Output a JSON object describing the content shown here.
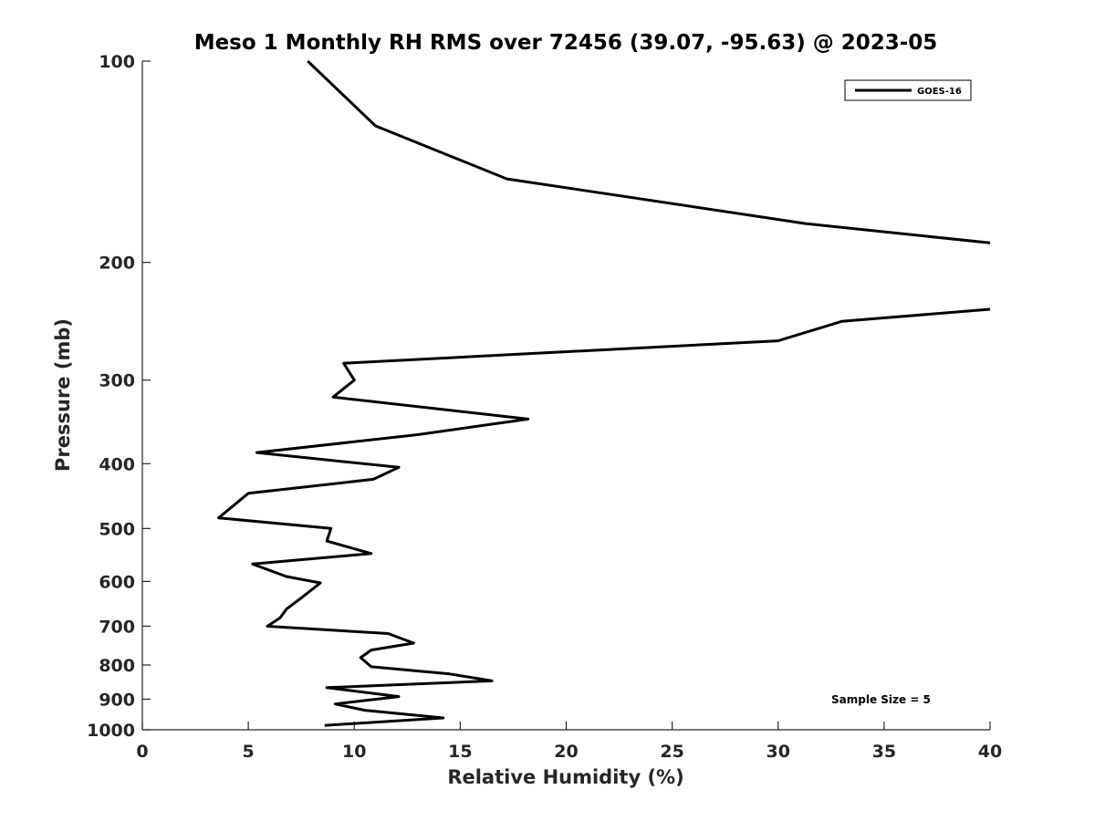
{
  "chart_data": {
    "type": "line",
    "title": "Meso 1 Monthly RH RMS over 72456 (39.07, -95.63) @ 2023-05",
    "xlabel": "Relative Humidity (%)",
    "ylabel": "Pressure (mb)",
    "xlim": [
      0,
      40
    ],
    "ylim": [
      100,
      1000
    ],
    "y_scale": "log",
    "y_reversed": true,
    "x_ticks": [
      0,
      5,
      10,
      15,
      20,
      25,
      30,
      35,
      40
    ],
    "x_tick_labels": [
      "0",
      "5",
      "10",
      "15",
      "20",
      "25",
      "30",
      "35",
      "40"
    ],
    "y_ticks": [
      100,
      200,
      300,
      400,
      500,
      600,
      700,
      800,
      900,
      1000
    ],
    "y_tick_labels": [
      "100",
      "200",
      "300",
      "400",
      "500",
      "600",
      "700",
      "800",
      "900",
      "1000"
    ],
    "grid": false,
    "legend_position": "top-right",
    "series": [
      {
        "name": "GOES-16",
        "color": "#000000",
        "segments": [
          [
            {
              "x": 7.8,
              "p": 100
            },
            {
              "x": 11.0,
              "p": 125
            },
            {
              "x": 17.2,
              "p": 150
            },
            {
              "x": 31.3,
              "p": 175
            },
            {
              "x": 40.0,
              "p": 187
            }
          ],
          [
            {
              "x": 40.0,
              "p": 235
            },
            {
              "x": 33.0,
              "p": 245
            },
            {
              "x": 30.0,
              "p": 262
            },
            {
              "x": 9.5,
              "p": 283
            },
            {
              "x": 10.0,
              "p": 300
            },
            {
              "x": 9.0,
              "p": 318
            },
            {
              "x": 18.2,
              "p": 343
            },
            {
              "x": 13.0,
              "p": 362
            },
            {
              "x": 5.4,
              "p": 385
            },
            {
              "x": 12.1,
              "p": 405
            },
            {
              "x": 10.9,
              "p": 422
            },
            {
              "x": 5.0,
              "p": 443
            },
            {
              "x": 3.6,
              "p": 482
            },
            {
              "x": 8.9,
              "p": 500
            },
            {
              "x": 8.7,
              "p": 522
            },
            {
              "x": 10.8,
              "p": 545
            },
            {
              "x": 5.2,
              "p": 565
            },
            {
              "x": 6.8,
              "p": 590
            },
            {
              "x": 8.4,
              "p": 603
            },
            {
              "x": 7.5,
              "p": 635
            },
            {
              "x": 6.8,
              "p": 660
            },
            {
              "x": 6.5,
              "p": 680
            },
            {
              "x": 5.9,
              "p": 700
            },
            {
              "x": 11.6,
              "p": 718
            },
            {
              "x": 12.8,
              "p": 742
            },
            {
              "x": 10.8,
              "p": 760
            },
            {
              "x": 10.3,
              "p": 780
            },
            {
              "x": 10.8,
              "p": 805
            },
            {
              "x": 14.5,
              "p": 825
            },
            {
              "x": 16.5,
              "p": 845
            },
            {
              "x": 8.7,
              "p": 865
            },
            {
              "x": 12.1,
              "p": 892
            },
            {
              "x": 9.1,
              "p": 915
            },
            {
              "x": 10.5,
              "p": 935
            },
            {
              "x": 14.2,
              "p": 960
            },
            {
              "x": 8.6,
              "p": 985
            }
          ]
        ]
      }
    ],
    "annotations": [
      {
        "text": "Sample Size = 5",
        "position": "bottom-right"
      }
    ]
  }
}
